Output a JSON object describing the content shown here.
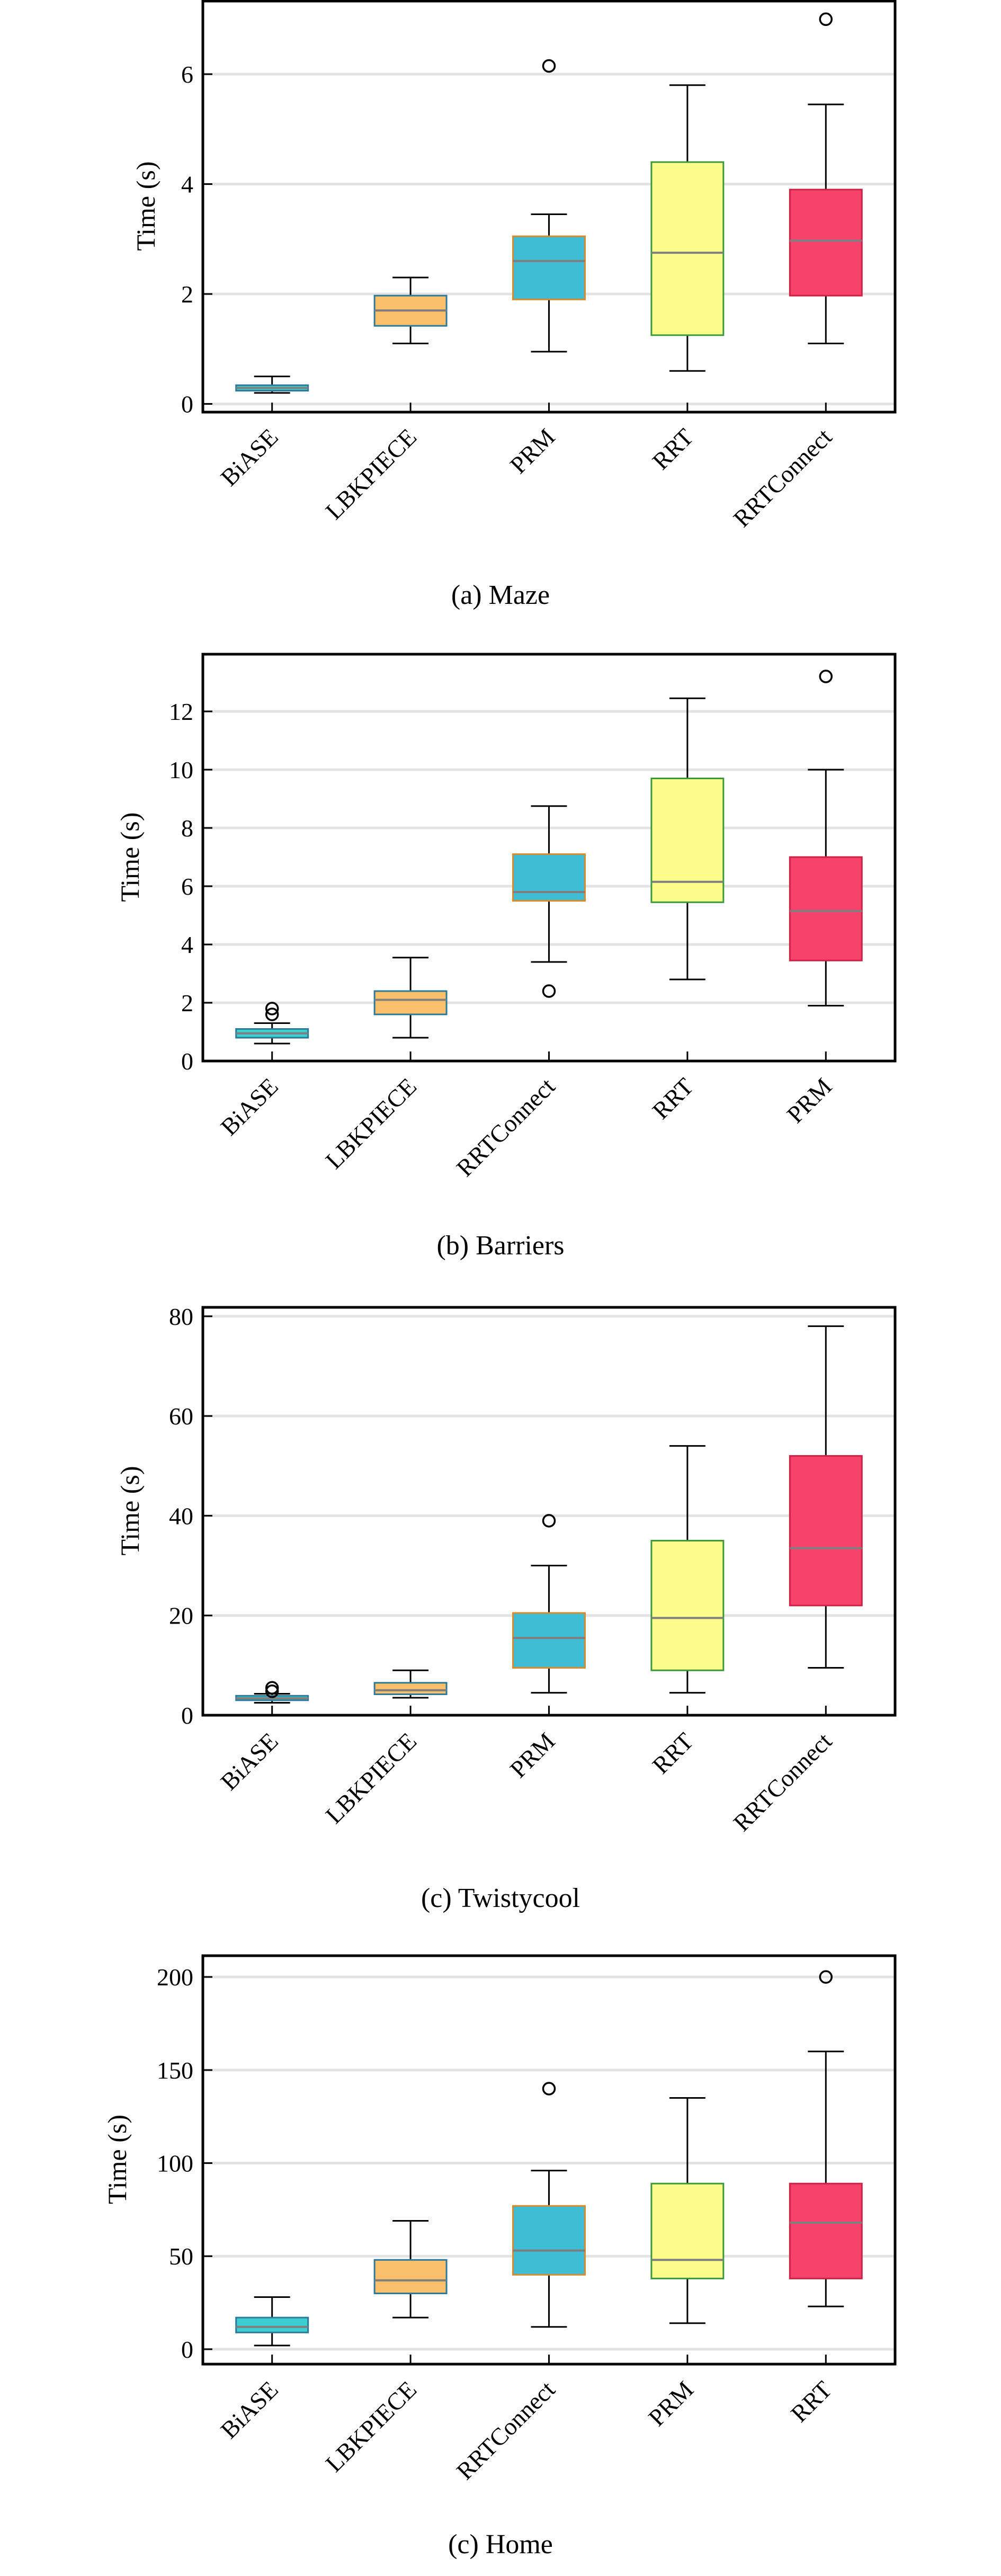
{
  "chart_data": [
    {
      "type": "boxplot",
      "caption": "(a) Maze",
      "ylabel": "Time (s)",
      "ylim": [
        -0.15,
        7.35
      ],
      "yticks": [
        0,
        2,
        4,
        6
      ],
      "grid": true,
      "categories": [
        "BiASE",
        "LBKPIECE",
        "PRM",
        "RRT",
        "RRTConnect"
      ],
      "colors": [
        "#3ccfcf",
        "#f9bf6a",
        "#3ebdd4",
        "#fdfd8c",
        "#f7436c"
      ],
      "edge_colors": [
        "#2b7a9a",
        "#2b7a9a",
        "#d98a2a",
        "#3a9a3a",
        "#cc2244"
      ],
      "boxes": [
        {
          "min": 0.2,
          "q1": 0.24,
          "median": 0.29,
          "q3": 0.34,
          "max": 0.5,
          "outliers": []
        },
        {
          "min": 1.1,
          "q1": 1.42,
          "median": 1.7,
          "q3": 1.97,
          "max": 2.3,
          "outliers": []
        },
        {
          "min": 0.95,
          "q1": 1.9,
          "median": 2.6,
          "q3": 3.05,
          "max": 3.45,
          "outliers": [
            6.15
          ]
        },
        {
          "min": 0.6,
          "q1": 1.25,
          "median": 2.75,
          "q3": 4.4,
          "max": 5.8,
          "outliers": []
        },
        {
          "min": 1.1,
          "q1": 1.97,
          "median": 2.97,
          "q3": 3.9,
          "max": 5.45,
          "outliers": [
            7.0
          ]
        }
      ]
    },
    {
      "type": "boxplot",
      "caption": "(b) Barriers",
      "ylabel": "Time (s)",
      "ylim": [
        0,
        14.0
      ],
      "yticks": [
        0,
        2,
        4,
        6,
        8,
        10,
        12
      ],
      "grid": true,
      "categories": [
        "BiASE",
        "LBKPIECE",
        "RRTConnect",
        "RRT",
        "PRM"
      ],
      "colors": [
        "#3ccfcf",
        "#f9bf6a",
        "#3ebdd4",
        "#fdfd8c",
        "#f7436c"
      ],
      "edge_colors": [
        "#2b7a9a",
        "#2b7a9a",
        "#d98a2a",
        "#3a9a3a",
        "#cc2244"
      ],
      "boxes": [
        {
          "min": 0.6,
          "q1": 0.8,
          "median": 0.95,
          "q3": 1.1,
          "max": 1.3,
          "outliers": [
            1.6,
            1.8
          ]
        },
        {
          "min": 0.8,
          "q1": 1.6,
          "median": 2.1,
          "q3": 2.4,
          "max": 3.55,
          "outliers": []
        },
        {
          "min": 3.4,
          "q1": 5.5,
          "median": 5.8,
          "q3": 7.1,
          "max": 8.75,
          "outliers": [
            2.4
          ]
        },
        {
          "min": 2.8,
          "q1": 5.45,
          "median": 6.15,
          "q3": 9.7,
          "max": 12.45,
          "outliers": []
        },
        {
          "min": 1.9,
          "q1": 3.45,
          "median": 5.15,
          "q3": 7.0,
          "max": 10.0,
          "outliers": [
            13.2
          ]
        }
      ]
    },
    {
      "type": "boxplot",
      "caption": "(c) Twistycool",
      "ylabel": "Time (s)",
      "ylim": [
        0,
        82
      ],
      "yticks": [
        0,
        20,
        40,
        60,
        80
      ],
      "grid": true,
      "categories": [
        "BiASE",
        "LBKPIECE",
        "PRM",
        "RRT",
        "RRTConnect"
      ],
      "colors": [
        "#3ccfcf",
        "#f9bf6a",
        "#3ebdd4",
        "#fdfd8c",
        "#f7436c"
      ],
      "edge_colors": [
        "#2b7a9a",
        "#2b7a9a",
        "#d98a2a",
        "#3a9a3a",
        "#cc2244"
      ],
      "boxes": [
        {
          "min": 2.5,
          "q1": 3.0,
          "median": 3.4,
          "q3": 3.9,
          "max": 4.3,
          "outliers": [
            4.8,
            5.5
          ]
        },
        {
          "min": 3.5,
          "q1": 4.2,
          "median": 5.0,
          "q3": 6.5,
          "max": 9.0,
          "outliers": []
        },
        {
          "min": 4.5,
          "q1": 9.5,
          "median": 15.5,
          "q3": 20.5,
          "max": 30.0,
          "outliers": [
            39.0
          ]
        },
        {
          "min": 4.5,
          "q1": 9.0,
          "median": 19.5,
          "q3": 35.0,
          "max": 54.0,
          "outliers": []
        },
        {
          "min": 9.5,
          "q1": 22.0,
          "median": 33.5,
          "q3": 52.0,
          "max": 78.0,
          "outliers": []
        }
      ]
    },
    {
      "type": "boxplot",
      "caption": "(c) Home",
      "ylabel": "Time (s)",
      "ylim": [
        -8,
        212
      ],
      "yticks": [
        0,
        50,
        100,
        150,
        200
      ],
      "grid": true,
      "categories": [
        "BiASE",
        "LBKPIECE",
        "RRTConnect",
        "PRM",
        "RRT"
      ],
      "colors": [
        "#3ccfcf",
        "#f9bf6a",
        "#3ebdd4",
        "#fdfd8c",
        "#f7436c"
      ],
      "edge_colors": [
        "#2b7a9a",
        "#2b7a9a",
        "#d98a2a",
        "#3a9a3a",
        "#cc2244"
      ],
      "boxes": [
        {
          "min": 2,
          "q1": 9,
          "median": 12,
          "q3": 17,
          "max": 28,
          "outliers": []
        },
        {
          "min": 17,
          "q1": 30,
          "median": 37,
          "q3": 48,
          "max": 69,
          "outliers": []
        },
        {
          "min": 12,
          "q1": 40,
          "median": 53,
          "q3": 77,
          "max": 96,
          "outliers": [
            140
          ]
        },
        {
          "min": 14,
          "q1": 38,
          "median": 48,
          "q3": 89,
          "max": 135,
          "outliers": []
        },
        {
          "min": 23,
          "q1": 38,
          "median": 68,
          "q3": 89,
          "max": 160,
          "outliers": [
            200
          ]
        }
      ]
    }
  ]
}
